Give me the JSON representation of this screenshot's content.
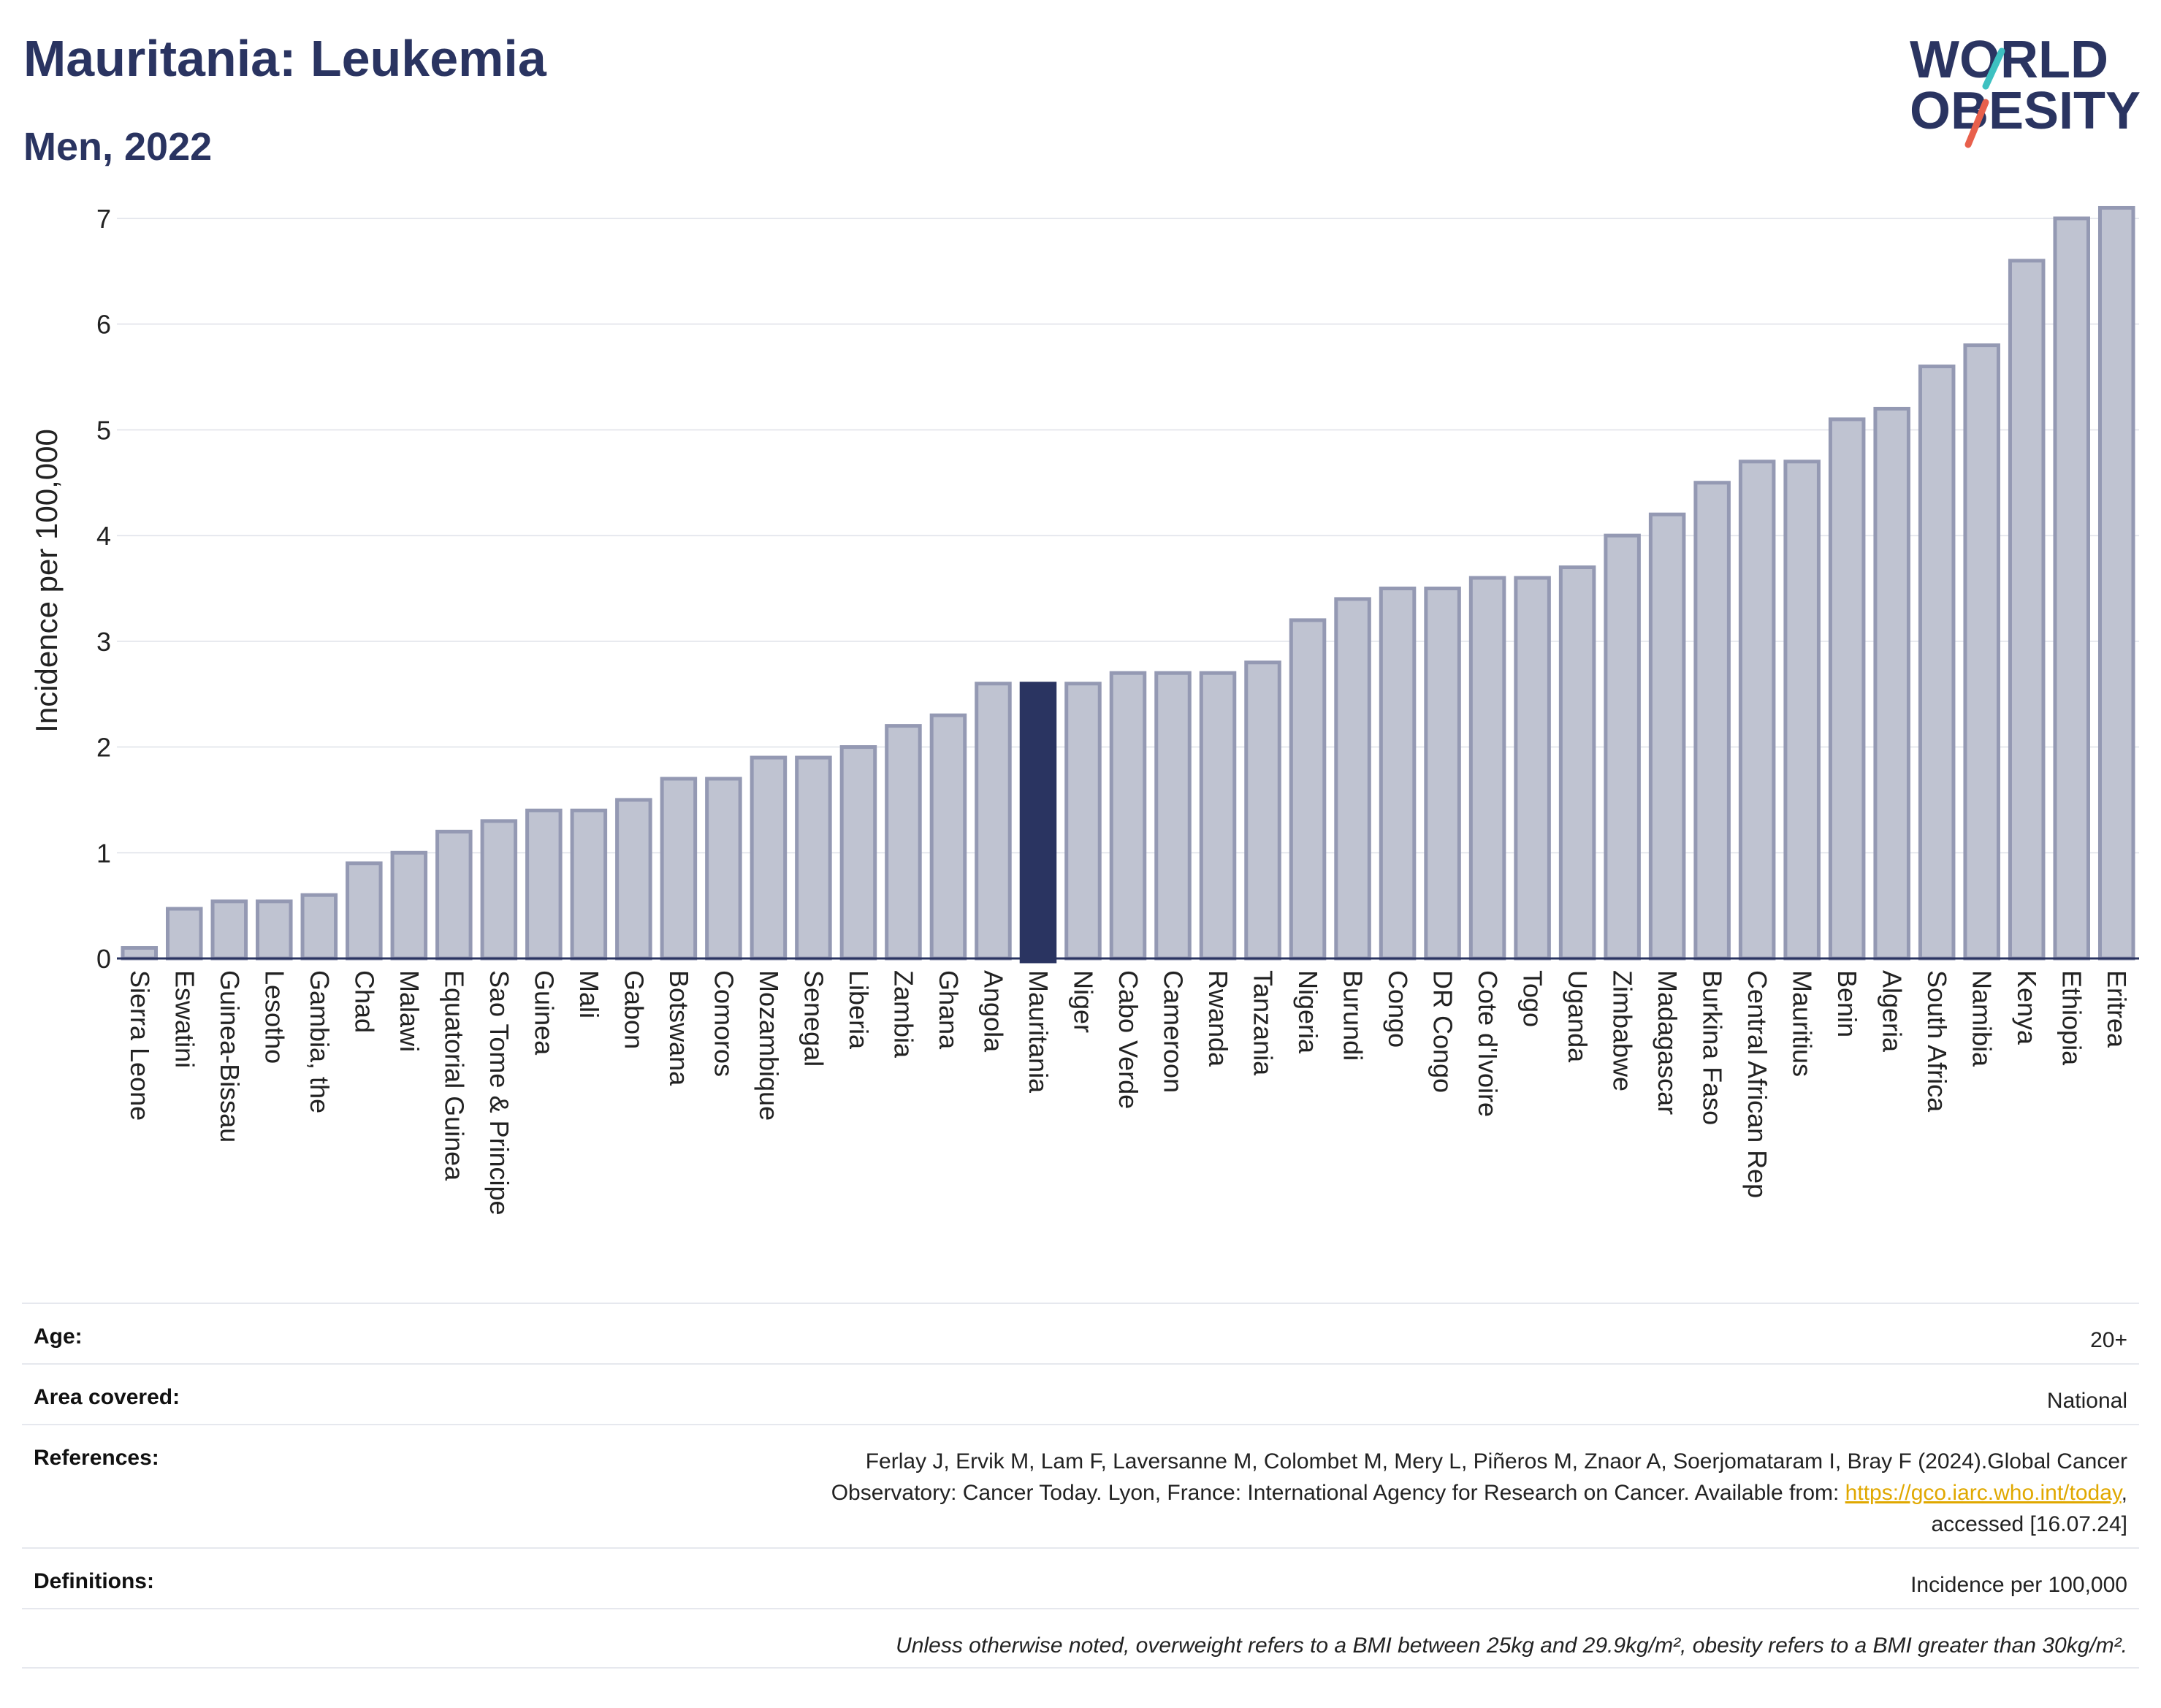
{
  "header": {
    "title": "Mauritania: Leukemia",
    "subtitle": "Men, 2022",
    "logo_line1": "WORLD",
    "logo_line2": "OBESITY"
  },
  "colors": {
    "bar": "#bfc3d1",
    "bar_stroke": "#9499b3",
    "highlight": "#2a3461",
    "logo_teal": "#3ec1c1",
    "logo_red": "#e8604c",
    "text": "#2a3461"
  },
  "chart_data": {
    "type": "bar",
    "title": "Mauritania: Leukemia",
    "subtitle": "Men, 2022",
    "xlabel": "",
    "ylabel": "Incidence per 100,000",
    "ylim": [
      0,
      7.2
    ],
    "yticks": [
      0,
      1,
      2,
      3,
      4,
      5,
      6,
      7
    ],
    "grid": true,
    "highlight": "Mauritania",
    "categories": [
      "Sierra Leone",
      "Eswatini",
      "Guinea-Bissau",
      "Lesotho",
      "Gambia, the",
      "Chad",
      "Malawi",
      "Equatorial Guinea",
      "Sao Tome & Principe",
      "Guinea",
      "Mali",
      "Gabon",
      "Botswana",
      "Comoros",
      "Mozambique",
      "Senegal",
      "Liberia",
      "Zambia",
      "Ghana",
      "Angola",
      "Mauritania",
      "Niger",
      "Cabo Verde",
      "Cameroon",
      "Rwanda",
      "Tanzania",
      "Nigeria",
      "Burundi",
      "Congo",
      "DR Congo",
      "Cote d'Ivoire",
      "Togo",
      "Uganda",
      "Zimbabwe",
      "Madagascar",
      "Burkina Faso",
      "Central African Rep",
      "Mauritius",
      "Benin",
      "Algeria",
      "South Africa",
      "Namibia",
      "Kenya",
      "Ethiopia",
      "Eritrea"
    ],
    "values": [
      0.1,
      0.47,
      0.54,
      0.54,
      0.6,
      0.9,
      1.0,
      1.2,
      1.3,
      1.4,
      1.4,
      1.5,
      1.7,
      1.7,
      1.9,
      1.9,
      2.0,
      2.2,
      2.3,
      2.6,
      2.6,
      2.6,
      2.7,
      2.7,
      2.7,
      2.8,
      3.2,
      3.4,
      3.5,
      3.5,
      3.6,
      3.6,
      3.7,
      4.0,
      4.2,
      4.5,
      4.7,
      4.7,
      5.1,
      5.2,
      5.6,
      5.8,
      6.6,
      7.0,
      7.1
    ]
  },
  "info": {
    "age_label": "Age:",
    "age_value": "20+",
    "area_label": "Area covered:",
    "area_value": "National",
    "references_label": "References:",
    "references_line1": "Ferlay J, Ervik M, Lam F, Laversanne M, Colombet M, Mery L, Piñeros M, Znaor A, Soerjomataram I, Bray F (2024).Global Cancer",
    "references_line2": "Observatory: Cancer Today. Lyon, France: International Agency for Research on Cancer. Available from: ",
    "references_link": "https://gco.iarc.who.int/today",
    "references_after_link": ",",
    "references_line3": "accessed [16.07.24]",
    "definitions_label": "Definitions:",
    "definitions_value": "Incidence per 100,000",
    "note": "Unless otherwise noted, overweight refers to a BMI between 25kg and 29.9kg/m², obesity refers to a BMI greater than 30kg/m²."
  }
}
